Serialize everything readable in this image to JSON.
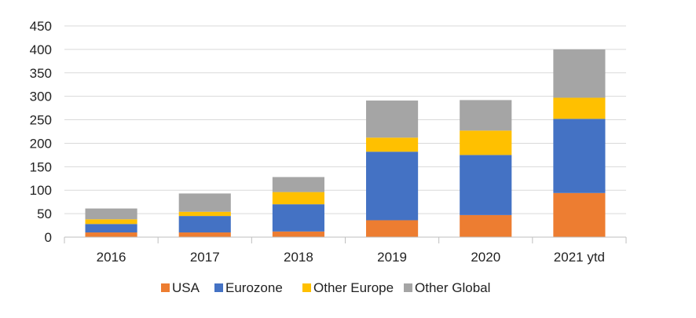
{
  "chart_data": {
    "type": "bar",
    "stacked": true,
    "categories": [
      "2016",
      "2017",
      "2018",
      "2019",
      "2020",
      "2021 ytd"
    ],
    "series": [
      {
        "name": "USA",
        "color": "#ED7D31",
        "values": [
          10,
          10,
          12,
          36,
          47,
          94
        ]
      },
      {
        "name": "Eurozone",
        "color": "#4472C4",
        "values": [
          18,
          35,
          58,
          146,
          128,
          158
        ]
      },
      {
        "name": "Other Europe",
        "color": "#FFC000",
        "values": [
          10,
          9,
          26,
          30,
          52,
          45
        ]
      },
      {
        "name": "Other Global",
        "color": "#A5A5A5",
        "values": [
          23,
          39,
          32,
          79,
          65,
          103
        ]
      }
    ],
    "ylim": [
      0,
      450
    ],
    "yticks": [
      "0",
      "50",
      "100",
      "150",
      "200",
      "250",
      "300",
      "350",
      "400",
      "450"
    ],
    "grid": true,
    "legend_position": "bottom"
  }
}
